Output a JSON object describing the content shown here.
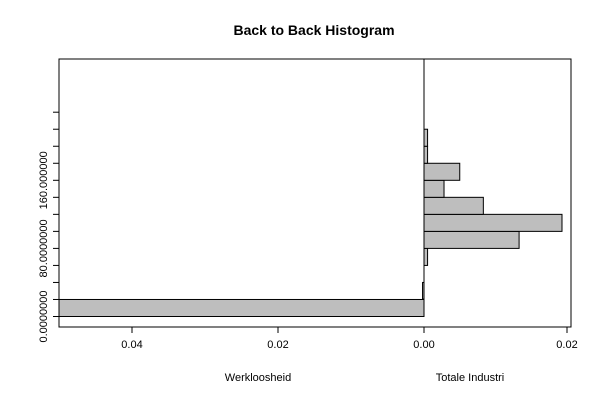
{
  "chart_data": {
    "type": "bar",
    "title": "Back to Back Histogram",
    "orientation": "horizontal back-to-back",
    "y_bins": [
      0,
      20,
      40,
      60,
      80,
      100,
      120,
      140,
      160,
      180,
      200,
      220
    ],
    "y_ticks": [
      0,
      80,
      160
    ],
    "y_tick_labels": [
      "0.0000000",
      "80.0000000",
      "160.000000"
    ],
    "y_minor_ticks": [
      0,
      20,
      40,
      60,
      80,
      100,
      120,
      140,
      160,
      180,
      200,
      220,
      240
    ],
    "ylim": [
      -5,
      250
    ],
    "left": {
      "xlabel": "Werkloosheid",
      "xlim": [
        0.0,
        0.05
      ],
      "x_ticks": [
        0.04,
        0.02,
        0.0
      ],
      "x_tick_labels": [
        "0.04",
        "0.02",
        "0.00"
      ],
      "values": [
        0.05,
        0.0002,
        0,
        0,
        0,
        0,
        0,
        0,
        0,
        0,
        0
      ]
    },
    "right": {
      "xlabel": "Totale Industri",
      "xlim": [
        0.0,
        0.02
      ],
      "x_ticks": [
        0.0,
        0.02
      ],
      "x_tick_labels": [
        "0.00",
        "0.02"
      ],
      "values": [
        0,
        0,
        0,
        0.0005,
        0.0133,
        0.0193,
        0.0083,
        0.0028,
        0.005,
        0.0005,
        0.0005
      ]
    },
    "bar_color": "#bebebe",
    "grid": false
  }
}
